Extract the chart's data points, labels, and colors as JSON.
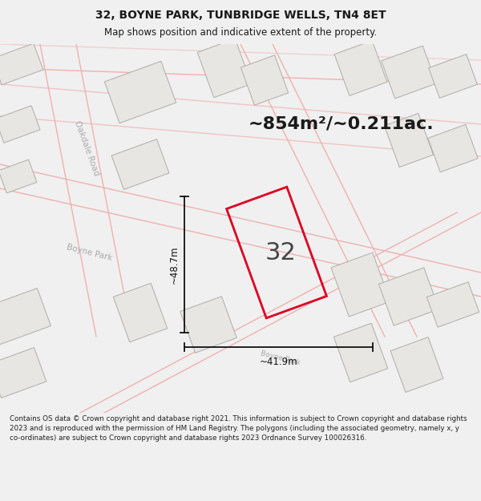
{
  "title_line1": "32, BOYNE PARK, TUNBRIDGE WELLS, TN4 8ET",
  "title_line2": "Map shows position and indicative extent of the property.",
  "area_text": "~854m²/~0.211ac.",
  "dim_width": "~41.9m",
  "dim_height": "~48.7m",
  "plot_number": "32",
  "footer_text": "Contains OS data © Crown copyright and database right 2021. This information is subject to Crown copyright and database rights 2023 and is reproduced with the permission of HM Land Registry. The polygons (including the associated geometry, namely x, y co-ordinates) are subject to Crown copyright and database rights 2023 Ordnance Survey 100026316.",
  "map_bg": "#f5f4f2",
  "building_fill": "#e8e6e3",
  "building_edge": "#b0aca8",
  "road_outline": "#f0b0b0",
  "plot_edge": "#dd0022",
  "text_color": "#1a1a1a",
  "dim_color": "#111111",
  "street_label_color": "#aaaaaa",
  "footer_bg": "#f0f0f0",
  "title_bg": "#f0f0f0"
}
